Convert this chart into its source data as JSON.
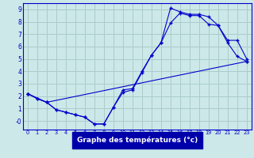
{
  "xlabel": "Graphe des températures (°c)",
  "bg_color": "#cce8e8",
  "grid_color": "#aacccc",
  "line_color": "#0000cc",
  "xlim": [
    -0.5,
    23.5
  ],
  "ylim": [
    -0.7,
    9.5
  ],
  "xticks": [
    0,
    1,
    2,
    3,
    4,
    5,
    6,
    7,
    8,
    9,
    10,
    11,
    12,
    13,
    14,
    15,
    16,
    17,
    18,
    19,
    20,
    21,
    22,
    23
  ],
  "yticks": [
    0,
    1,
    2,
    3,
    4,
    5,
    6,
    7,
    8,
    9
  ],
  "ytick_labels": [
    "-0",
    "1",
    "2",
    "3",
    "4",
    "5",
    "6",
    "7",
    "8",
    "9"
  ],
  "curve1_x": [
    0,
    1,
    2,
    3,
    4,
    5,
    6,
    7,
    8,
    9,
    10,
    11,
    12,
    13,
    14,
    15,
    16,
    17,
    18,
    19,
    20,
    21,
    22,
    23
  ],
  "curve1_y": [
    2.2,
    1.8,
    1.5,
    0.9,
    0.7,
    0.5,
    0.3,
    -0.25,
    -0.25,
    1.1,
    2.5,
    2.6,
    4.0,
    5.3,
    6.3,
    9.1,
    8.8,
    8.6,
    8.6,
    8.4,
    7.7,
    6.3,
    5.2,
    4.8
  ],
  "curve2_x": [
    0,
    1,
    2,
    3,
    4,
    5,
    6,
    7,
    8,
    9,
    10,
    11,
    12,
    13,
    14,
    15,
    16,
    17,
    18,
    19,
    20,
    21,
    22,
    23
  ],
  "curve2_y": [
    2.2,
    1.8,
    1.5,
    0.9,
    0.7,
    0.5,
    0.3,
    -0.25,
    -0.25,
    1.1,
    2.3,
    2.5,
    3.9,
    5.3,
    6.3,
    7.9,
    8.7,
    8.5,
    8.5,
    7.8,
    7.7,
    6.5,
    6.5,
    5.0
  ],
  "curve3_x": [
    0,
    2,
    23
  ],
  "curve3_y": [
    2.2,
    1.5,
    4.8
  ]
}
